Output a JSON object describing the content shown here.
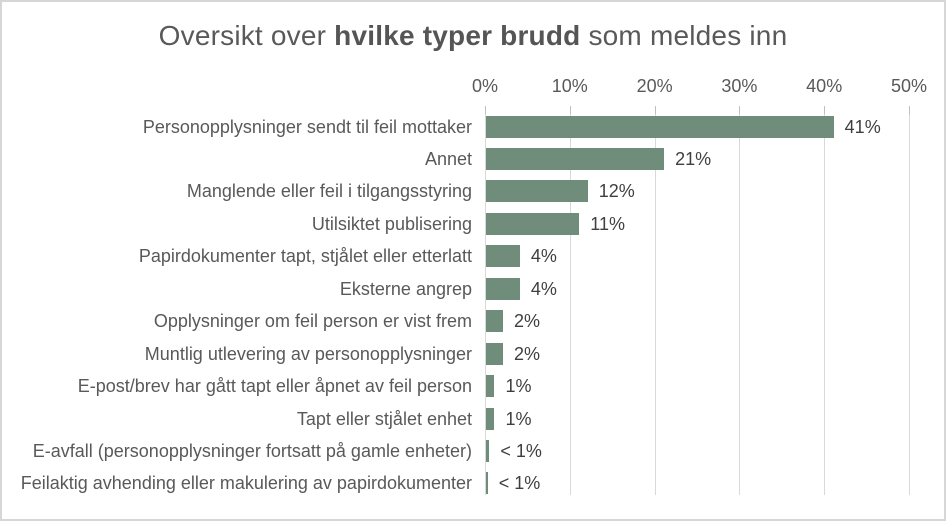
{
  "title": {
    "prefix": "Oversikt over ",
    "bold": "hvilke typer brudd",
    "suffix": " som meldes inn"
  },
  "colors": {
    "bar": "#708c7b",
    "gridline": "#d9d9d9",
    "tick_mark": "#bfbfbf",
    "title_text": "#595959",
    "category_text": "#595959",
    "value_text": "#3f3f3f",
    "frame_border": "#d6d6d6"
  },
  "chart_data": {
    "type": "bar",
    "orientation": "horizontal",
    "title": "Oversikt over hvilke typer brudd som meldes inn",
    "title_bold_part": "hvilke typer brudd",
    "legend": "none",
    "x_axis": {
      "position": "top",
      "min": 0,
      "max": 50,
      "tick_step": 10,
      "ticks": [
        "0%",
        "10%",
        "20%",
        "30%",
        "40%",
        "50%"
      ],
      "grid": true
    },
    "categories": [
      "Personopplysninger sendt til feil mottaker",
      "Annet",
      "Manglende eller feil i tilgangsstyring",
      "Utilsiktet publisering",
      "Papirdokumenter tapt, stjålet eller etterlatt",
      "Eksterne angrep",
      "Opplysninger om feil person er vist frem",
      "Muntlig utlevering av personopplysninger",
      "E-post/brev har gått tapt eller åpnet av feil person",
      "Tapt eller stjålet enhet",
      "E-avfall (personopplysninger fortsatt på gamle enheter)",
      "Feilaktig avhending eller makulering av papirdokumenter"
    ],
    "values": [
      41,
      21,
      12,
      11,
      4,
      4,
      2,
      2,
      1,
      1,
      0.4,
      0.2
    ],
    "value_labels": [
      "41%",
      "21%",
      "12%",
      "11%",
      "4%",
      "4%",
      "2%",
      "2%",
      "1%",
      "1%",
      "< 1%",
      "< 1%"
    ]
  }
}
